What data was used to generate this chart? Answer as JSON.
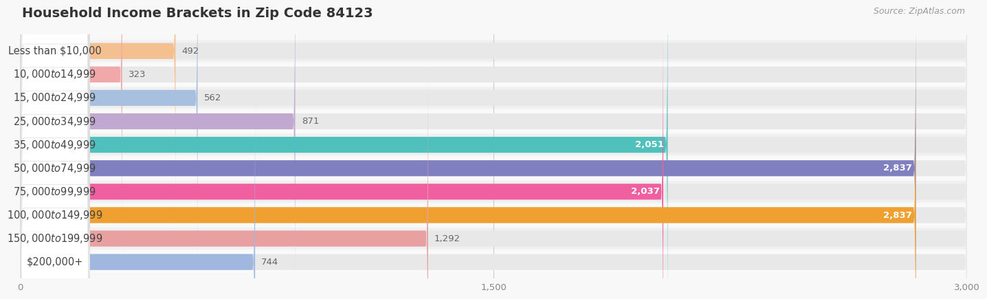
{
  "title": "Household Income Brackets in Zip Code 84123",
  "source": "Source: ZipAtlas.com",
  "categories": [
    "Less than $10,000",
    "$10,000 to $14,999",
    "$15,000 to $24,999",
    "$25,000 to $34,999",
    "$35,000 to $49,999",
    "$50,000 to $74,999",
    "$75,000 to $99,999",
    "$100,000 to $149,999",
    "$150,000 to $199,999",
    "$200,000+"
  ],
  "values": [
    492,
    323,
    562,
    871,
    2051,
    2837,
    2037,
    2837,
    1292,
    744
  ],
  "bar_colors": [
    "#f5c090",
    "#f0a8a8",
    "#a8c0e0",
    "#c0a8d0",
    "#50c0bc",
    "#8080c0",
    "#f060a0",
    "#f0a030",
    "#e8a0a0",
    "#a0b8e0"
  ],
  "bar_bg_color": "#e8e8e8",
  "label_bg_color": "#ffffff",
  "xlim_max": 3000,
  "xticks": [
    0,
    1500,
    3000
  ],
  "background_color": "#f8f8f8",
  "row_bg_colors": [
    "#f0f0f0",
    "#fafafa"
  ],
  "title_fontsize": 14,
  "label_fontsize": 10.5,
  "value_fontsize": 9.5,
  "source_fontsize": 9
}
